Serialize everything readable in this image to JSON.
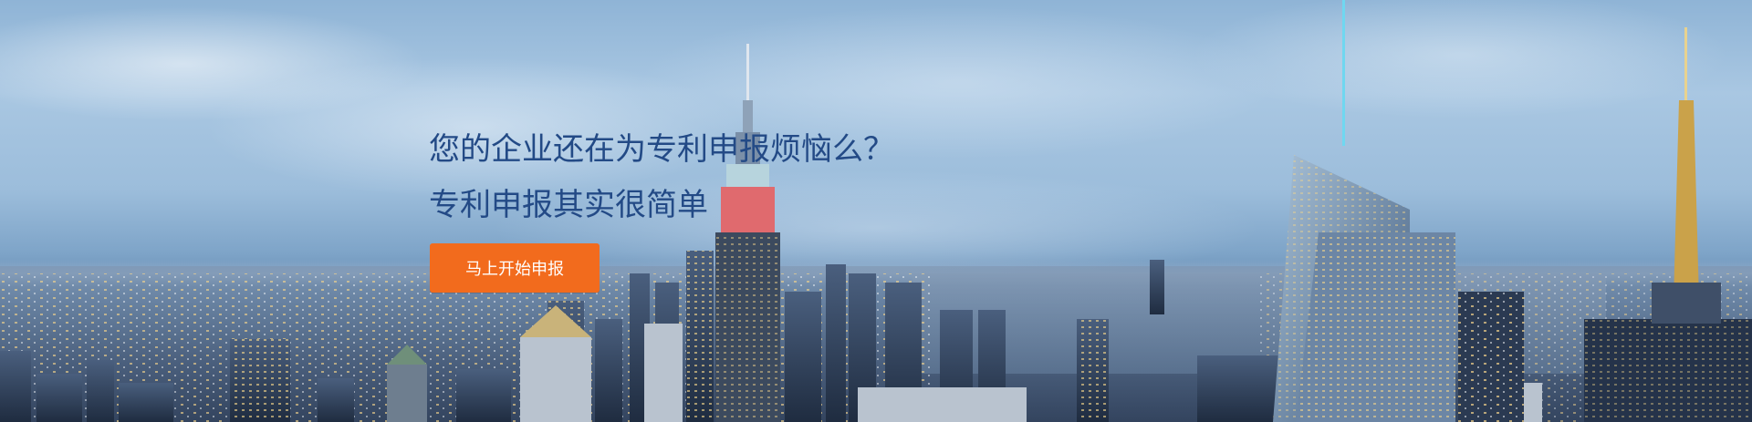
{
  "hero": {
    "headline_line1": "您的企业还在为专利申报烦恼么？",
    "headline_line2": "专利申报其实很简单",
    "cta_label": "马上开始申报"
  },
  "colors": {
    "headline": "#234a86",
    "cta_background": "#f26b1d",
    "cta_text": "#ffffff"
  }
}
